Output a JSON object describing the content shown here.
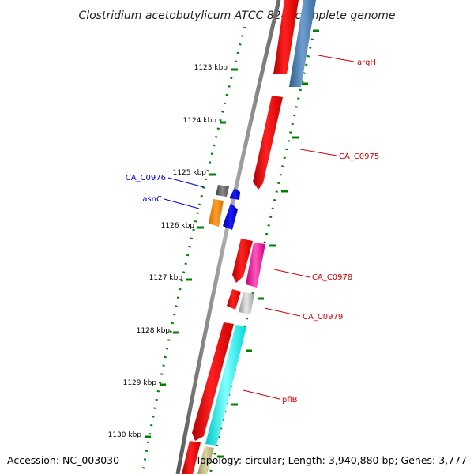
{
  "title": "Clostridium acetobutylicum ATCC 824, complete genome",
  "footer": {
    "accession": "Accession: NC_003030",
    "topology": "Topology: circular; Length: 3,940,880 bp; Genes: 3,777"
  },
  "scale_labels": [
    "1123 kbp",
    "1124 kbp",
    "1125 kbp",
    "1126 kbp",
    "1127 kbp",
    "1128 kbp",
    "1129 kbp",
    "1130 kbp"
  ],
  "gene_labels": [
    {
      "text": "argH",
      "color": "#cc0000"
    },
    {
      "text": "CA_C0975",
      "color": "#cc0000"
    },
    {
      "text": "CA_C0976",
      "color": "#0000cc"
    },
    {
      "text": "asnC",
      "color": "#0000cc"
    },
    {
      "text": "CA_C0978",
      "color": "#cc0000"
    },
    {
      "text": "CA_C0979",
      "color": "#cc0000"
    },
    {
      "text": "pflB",
      "color": "#cc0000"
    }
  ],
  "legend_colors": {
    "forward_cds": "#ff0000",
    "reverse_cds": "#0000ff",
    "tick": "#008000",
    "backbone": "#808080"
  }
}
